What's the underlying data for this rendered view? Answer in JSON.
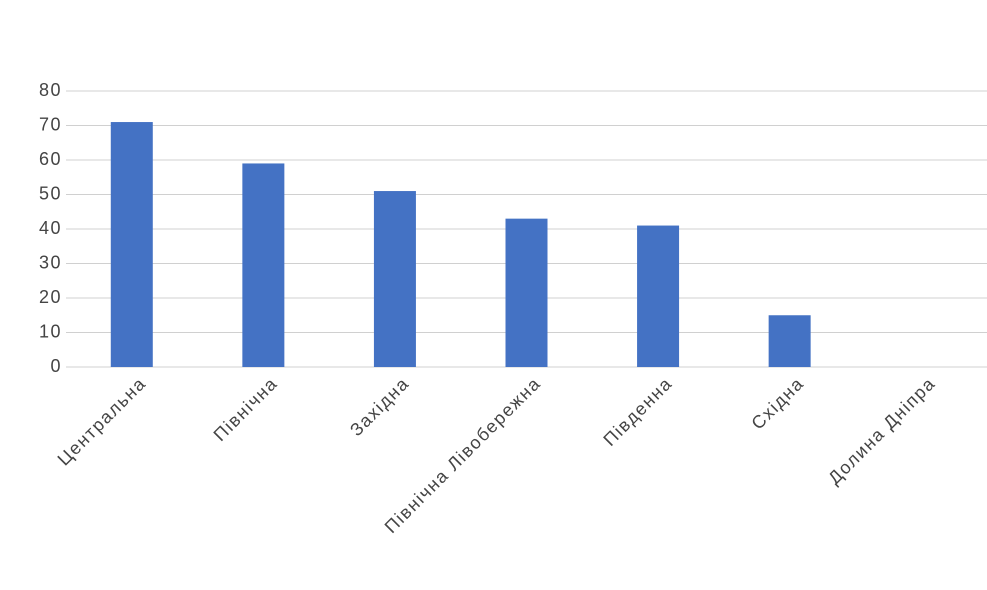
{
  "chart_data": {
    "type": "bar",
    "categories": [
      "Центральна",
      "Північна",
      "Західна",
      "Північна Лівобережна",
      "Південна",
      "Східна",
      "Долина Дніпра"
    ],
    "values": [
      71,
      59,
      51,
      43,
      41,
      15,
      0
    ],
    "color": "#4472c4",
    "ylim": [
      0,
      80
    ],
    "yticks": [
      0,
      10,
      20,
      30,
      40,
      50,
      60,
      70,
      80
    ],
    "grid": true
  }
}
